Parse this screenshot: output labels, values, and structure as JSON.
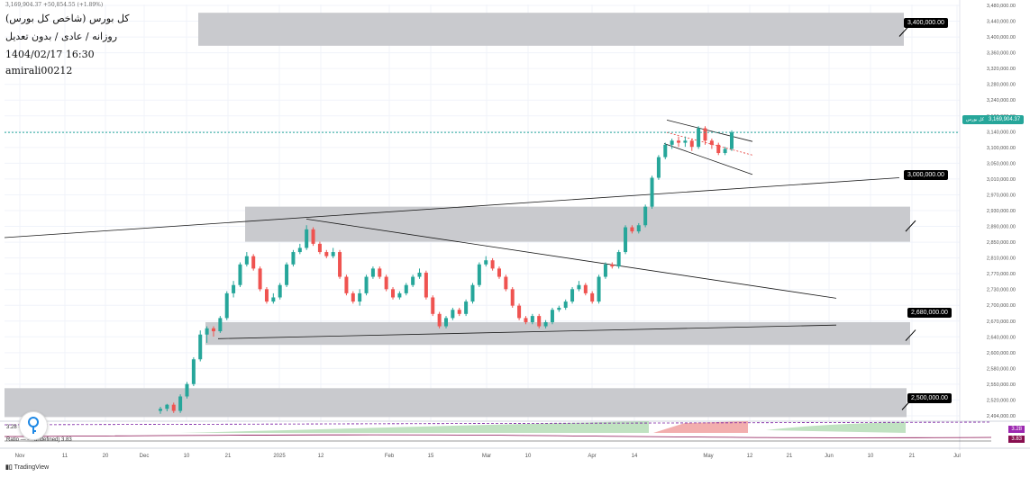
{
  "header": {
    "symbol": "کل بورس (شاخص کل بورس)",
    "settings": "روزانه / عادی / بدون تعدیل",
    "datetime": "1404/02/17 16:30",
    "author": "amirali00212",
    "ohlc_strip": "3,169,904.37 +50,854.55 (+1.89%)"
  },
  "price_tags": {
    "t3400": "3,400,000.00",
    "t3000": "3,000,000.00",
    "t2680": "2,680,000.00",
    "t2500": "2,500,000.00",
    "current": "3,169,904.37",
    "current_label": "کل بورس"
  },
  "indicators": {
    "label1": "میانگین - 3.28",
    "label2": "Ratio — — undefined) 3.83",
    "tag1": "3.28",
    "tag2": "3.83",
    "tag1_color": "#9c27b0",
    "tag2_color": "#880e4f"
  },
  "footer": {
    "brand": "TradingView"
  },
  "chart_data": {
    "type": "candlestick",
    "title": "کل بورس (شاخص کل بورس)",
    "ylim": [
      2470000,
      3480000
    ],
    "y_ticks": [
      "3,480,000.00",
      "3,440,000.00",
      "3,400,000.00",
      "3,360,000.00",
      "3,320,000.00",
      "3,280,000.00",
      "3,240,000.00",
      "3,190,000.00",
      "3,140,000.00",
      "3,100,000.00",
      "3,050,000.00",
      "3,010,000.00",
      "2,970,000.00",
      "2,930,000.00",
      "2,890,000.00",
      "2,850,000.00",
      "2,810,000.00",
      "2,770,000.00",
      "2,730,000.00",
      "2,700,000.00",
      "2,670,000.00",
      "2,640,000.00",
      "2,600,000.00",
      "2,580,000.00",
      "2,550,000.00",
      "2,520,000.00",
      "2,494,000.00"
    ],
    "x_ticks": [
      "Nov",
      "11",
      "20",
      "Dec",
      "10",
      "21",
      "2025",
      "12",
      "Feb",
      "15",
      "Mar",
      "10",
      "Apr",
      "14",
      "May",
      "12",
      "21",
      "Jun",
      "10",
      "21",
      "Jul"
    ],
    "zones": [
      {
        "from": 3380000,
        "to": 3460000,
        "label": "3,400,000.00"
      },
      {
        "from": 2905000,
        "to": 2990000,
        "label": "3,000,000.00"
      },
      {
        "from": 2655000,
        "to": 2710000,
        "label": "2,680,000.00"
      },
      {
        "from": 2480000,
        "to": 2550000,
        "label": "2,500,000.00"
      }
    ],
    "candles": [
      [
        2495000,
        2500000,
        2488000,
        2505000
      ],
      [
        2500000,
        2510000,
        2494000,
        2512000
      ],
      [
        2510000,
        2495000,
        2490000,
        2515000
      ],
      [
        2495000,
        2530000,
        2490000,
        2535000
      ],
      [
        2530000,
        2560000,
        2525000,
        2565000
      ],
      [
        2560000,
        2620000,
        2555000,
        2625000
      ],
      [
        2620000,
        2680000,
        2615000,
        2690000
      ],
      [
        2680000,
        2695000,
        2660000,
        2700000
      ],
      [
        2695000,
        2688000,
        2675000,
        2700000
      ],
      [
        2688000,
        2720000,
        2684000,
        2725000
      ],
      [
        2720000,
        2780000,
        2715000,
        2785000
      ],
      [
        2780000,
        2800000,
        2770000,
        2810000
      ],
      [
        2800000,
        2850000,
        2795000,
        2855000
      ],
      [
        2850000,
        2870000,
        2845000,
        2880000
      ],
      [
        2870000,
        2840000,
        2835000,
        2875000
      ],
      [
        2840000,
        2790000,
        2785000,
        2845000
      ],
      [
        2790000,
        2760000,
        2755000,
        2795000
      ],
      [
        2760000,
        2770000,
        2755000,
        2780000
      ],
      [
        2770000,
        2800000,
        2765000,
        2805000
      ],
      [
        2800000,
        2850000,
        2795000,
        2855000
      ],
      [
        2850000,
        2880000,
        2845000,
        2885000
      ],
      [
        2880000,
        2890000,
        2875000,
        2900000
      ],
      [
        2890000,
        2935000,
        2885000,
        2945000
      ],
      [
        2935000,
        2900000,
        2895000,
        2940000
      ],
      [
        2900000,
        2880000,
        2875000,
        2905000
      ],
      [
        2880000,
        2870000,
        2865000,
        2885000
      ],
      [
        2870000,
        2880000,
        2865000,
        2890000
      ],
      [
        2880000,
        2820000,
        2815000,
        2885000
      ],
      [
        2820000,
        2780000,
        2775000,
        2825000
      ],
      [
        2780000,
        2760000,
        2755000,
        2785000
      ],
      [
        2760000,
        2780000,
        2750000,
        2790000
      ],
      [
        2780000,
        2820000,
        2775000,
        2825000
      ],
      [
        2820000,
        2840000,
        2815000,
        2845000
      ],
      [
        2840000,
        2820000,
        2815000,
        2845000
      ],
      [
        2820000,
        2790000,
        2785000,
        2825000
      ],
      [
        2790000,
        2770000,
        2765000,
        2795000
      ],
      [
        2770000,
        2780000,
        2765000,
        2785000
      ],
      [
        2780000,
        2800000,
        2775000,
        2805000
      ],
      [
        2800000,
        2820000,
        2795000,
        2825000
      ],
      [
        2820000,
        2830000,
        2815000,
        2840000
      ],
      [
        2830000,
        2770000,
        2765000,
        2835000
      ],
      [
        2770000,
        2730000,
        2725000,
        2775000
      ],
      [
        2730000,
        2700000,
        2695000,
        2735000
      ],
      [
        2700000,
        2720000,
        2695000,
        2725000
      ],
      [
        2720000,
        2740000,
        2715000,
        2745000
      ],
      [
        2740000,
        2730000,
        2725000,
        2745000
      ],
      [
        2730000,
        2760000,
        2725000,
        2765000
      ],
      [
        2760000,
        2800000,
        2755000,
        2805000
      ],
      [
        2800000,
        2850000,
        2795000,
        2855000
      ],
      [
        2850000,
        2860000,
        2845000,
        2870000
      ],
      [
        2860000,
        2840000,
        2835000,
        2865000
      ],
      [
        2840000,
        2820000,
        2815000,
        2845000
      ],
      [
        2820000,
        2790000,
        2785000,
        2825000
      ],
      [
        2790000,
        2750000,
        2745000,
        2795000
      ],
      [
        2750000,
        2720000,
        2715000,
        2755000
      ],
      [
        2720000,
        2710000,
        2705000,
        2725000
      ],
      [
        2710000,
        2725000,
        2705000,
        2730000
      ],
      [
        2725000,
        2700000,
        2695000,
        2730000
      ],
      [
        2700000,
        2710000,
        2695000,
        2715000
      ],
      [
        2710000,
        2740000,
        2705000,
        2745000
      ],
      [
        2740000,
        2745000,
        2735000,
        2750000
      ],
      [
        2745000,
        2760000,
        2740000,
        2765000
      ],
      [
        2760000,
        2790000,
        2755000,
        2795000
      ],
      [
        2790000,
        2800000,
        2785000,
        2810000
      ],
      [
        2800000,
        2780000,
        2775000,
        2805000
      ],
      [
        2780000,
        2760000,
        2755000,
        2785000
      ],
      [
        2760000,
        2820000,
        2755000,
        2825000
      ],
      [
        2820000,
        2850000,
        2815000,
        2855000
      ],
      [
        2850000,
        2845000,
        2840000,
        2855000
      ],
      [
        2845000,
        2880000,
        2840000,
        2885000
      ],
      [
        2880000,
        2940000,
        2875000,
        2945000
      ],
      [
        2940000,
        2930000,
        2925000,
        2945000
      ],
      [
        2930000,
        2945000,
        2925000,
        2950000
      ],
      [
        2945000,
        2990000,
        2940000,
        2995000
      ],
      [
        2990000,
        3060000,
        2985000,
        3065000
      ],
      [
        3060000,
        3110000,
        3055000,
        3115000
      ],
      [
        3110000,
        3140000,
        3105000,
        3145000
      ],
      [
        3140000,
        3150000,
        3130000,
        3155000
      ],
      [
        3150000,
        3145000,
        3135000,
        3160000
      ],
      [
        3145000,
        3150000,
        3135000,
        3160000
      ],
      [
        3150000,
        3135000,
        3125000,
        3155000
      ],
      [
        3135000,
        3180000,
        3130000,
        3185000
      ],
      [
        3180000,
        3150000,
        3140000,
        3185000
      ],
      [
        3150000,
        3140000,
        3130000,
        3155000
      ],
      [
        3140000,
        3120000,
        3115000,
        3145000
      ],
      [
        3120000,
        3130000,
        3115000,
        3135000
      ],
      [
        3130000,
        3170000,
        3125000,
        3175000
      ]
    ],
    "current_price": 3169904.37
  }
}
